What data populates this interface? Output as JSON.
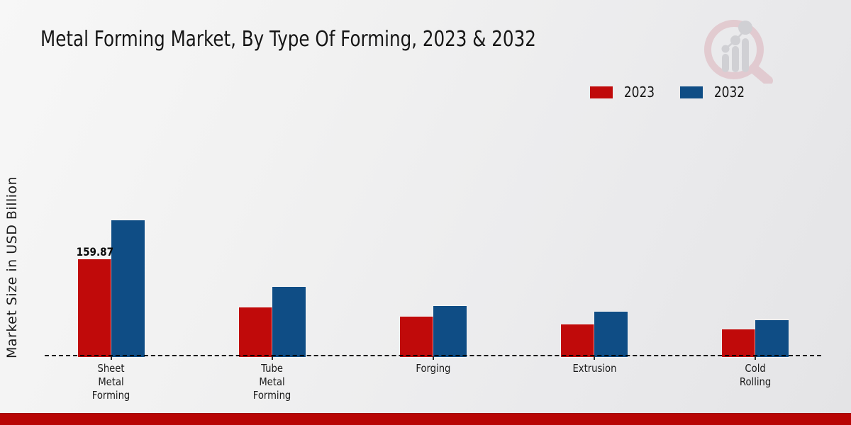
{
  "header": {
    "title": "Metal Forming Market, By Type Of Forming, 2023 & 2032"
  },
  "legend": {
    "items": [
      {
        "label": "2023",
        "color": "#c00a0a"
      },
      {
        "label": "2032",
        "color": "#0f4d85"
      }
    ]
  },
  "watermark": {
    "name": "market-research-future-logo",
    "ring_color": "#dcb2ba",
    "bars_color": "#bcbcc2"
  },
  "footer": {
    "bar_color": "#b80504"
  },
  "chart_data": {
    "type": "bar",
    "title": "Metal Forming Market, By Type Of Forming, 2023 & 2032",
    "xlabel": "",
    "ylabel": "Market Size in USD Billion",
    "categories": [
      "Sheet\nMetal\nForming",
      "Tube\nMetal\nForming",
      "Forging",
      "Extrusion",
      "Cold\nRolling"
    ],
    "series": [
      {
        "name": "2023",
        "color": "#c00a0a",
        "values": [
          159.87,
          79.9,
          64.7,
          51.7,
          43.5
        ]
      },
      {
        "name": "2032",
        "color": "#0f4d85",
        "values": [
          224.5,
          114.0,
          82.3,
          72.9,
          58.8
        ]
      }
    ],
    "bar_labels": [
      {
        "series": "2023",
        "category_index": 0,
        "text": "159.87"
      }
    ],
    "ylim": [
      0,
      240
    ],
    "grid": false,
    "y_tick_labels": false,
    "legend_position": "top-right",
    "baseline_style": "dashed-black"
  }
}
